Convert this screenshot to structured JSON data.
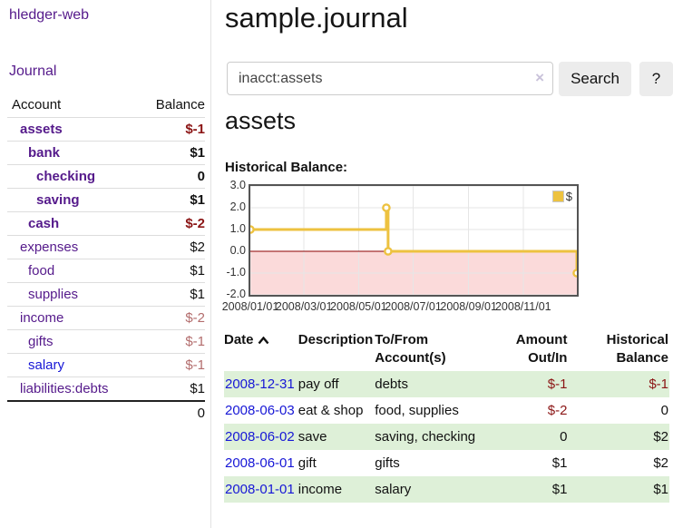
{
  "colors": {
    "purple": "#551a8b",
    "blue": "#1717d6",
    "neg_strong": "#8b1515",
    "neg_soft": "#b36d6d",
    "row_green": "#def0d8",
    "chart_yellow": "#edc240",
    "chart_pink": "#fbdada",
    "zero_red": "#8b0000",
    "grid": "#e6e6e6",
    "chart_border": "#545454",
    "divider": "#dddddd"
  },
  "sidebar": {
    "app_title": "hledger-web",
    "journal_link": "Journal",
    "accounts_table": {
      "header_account": "Account",
      "header_balance": "Balance",
      "rows": [
        {
          "name": "assets",
          "balance": "$-1",
          "level": 1,
          "bold": true,
          "balance_style": "neg-strong",
          "link_color": "purple"
        },
        {
          "name": "bank",
          "balance": "$1",
          "level": 2,
          "bold": true,
          "balance_style": "normal",
          "link_color": "purple"
        },
        {
          "name": "checking",
          "balance": "0",
          "level": 3,
          "bold": true,
          "balance_style": "normal",
          "link_color": "purple"
        },
        {
          "name": "saving",
          "balance": "$1",
          "level": 3,
          "bold": true,
          "balance_style": "normal",
          "link_color": "purple"
        },
        {
          "name": "cash",
          "balance": "$-2",
          "level": 2,
          "bold": true,
          "balance_style": "neg-strong",
          "link_color": "purple"
        },
        {
          "name": "expenses",
          "balance": "$2",
          "level": 1,
          "bold": false,
          "balance_style": "normal",
          "link_color": "purple"
        },
        {
          "name": "food",
          "balance": "$1",
          "level": 2,
          "bold": false,
          "balance_style": "normal",
          "link_color": "purple"
        },
        {
          "name": "supplies",
          "balance": "$1",
          "level": 2,
          "bold": false,
          "balance_style": "normal",
          "link_color": "purple"
        },
        {
          "name": "income",
          "balance": "$-2",
          "level": 1,
          "bold": false,
          "balance_style": "neg-soft",
          "link_color": "purple"
        },
        {
          "name": "gifts",
          "balance": "$-1",
          "level": 2,
          "bold": false,
          "balance_style": "neg-soft",
          "link_color": "purple"
        },
        {
          "name": "salary",
          "balance": "$-1",
          "level": 2,
          "bold": false,
          "balance_style": "neg-soft",
          "link_color": "blue"
        },
        {
          "name": "liabilities:debts",
          "balance": "$1",
          "level": 1,
          "bold": false,
          "balance_style": "normal",
          "link_color": "purple"
        }
      ],
      "total": "0"
    }
  },
  "header": {
    "title": "sample.journal"
  },
  "search": {
    "value": "inacct:assets",
    "clear_icon": "×",
    "search_button": "Search",
    "help_button": "?"
  },
  "account_view": {
    "heading": "assets",
    "chart_label": "Historical Balance:"
  },
  "chart_data": {
    "type": "line",
    "step": true,
    "title": "Historical Balance:",
    "legend": [
      {
        "name": "$",
        "color": "#edc240"
      }
    ],
    "legend_position": "top-right",
    "xrange": [
      "2008-01-01",
      "2008-12-31"
    ],
    "ylim": [
      -2,
      3
    ],
    "yticks": [
      3.0,
      2.0,
      1.0,
      0.0,
      -1.0,
      -2.0
    ],
    "ytick_labels": [
      "3.0",
      "2.0",
      "1.0",
      "0.0",
      "-1.0",
      "-2.0"
    ],
    "xtick_labels": [
      "2008/01/01",
      "2008/03/01",
      "2008/05/01",
      "2008/07/01",
      "2008/09/01",
      "2008/11/01"
    ],
    "series": [
      {
        "name": "$",
        "color": "#edc240",
        "points": [
          [
            "2008-01-01",
            1
          ],
          [
            "2008-06-01",
            2
          ],
          [
            "2008-06-03",
            0
          ],
          [
            "2008-12-31",
            -1
          ]
        ]
      }
    ],
    "negative_region_below": 0,
    "grid": true
  },
  "register": {
    "headers": {
      "date": "Date",
      "description": "Description",
      "accounts": "To/From Account(s)",
      "amount": "Amount Out/In",
      "balance": "Historical Balance"
    },
    "rows": [
      {
        "date": "2008-12-31",
        "description": "pay off",
        "accounts": "debts",
        "amount": "$-1",
        "balance": "$-1",
        "amount_neg": true,
        "balance_neg": true,
        "shaded": true
      },
      {
        "date": "2008-06-03",
        "description": "eat & shop",
        "accounts": "food, supplies",
        "amount": "$-2",
        "balance": "0",
        "amount_neg": true,
        "balance_neg": false,
        "shaded": false
      },
      {
        "date": "2008-06-02",
        "description": "save",
        "accounts": "saving, checking",
        "amount": "0",
        "balance": "$2",
        "amount_neg": false,
        "balance_neg": false,
        "shaded": true
      },
      {
        "date": "2008-06-01",
        "description": "gift",
        "accounts": "gifts",
        "amount": "$1",
        "balance": "$2",
        "amount_neg": false,
        "balance_neg": false,
        "shaded": false
      },
      {
        "date": "2008-01-01",
        "description": "income",
        "accounts": "salary",
        "amount": "$1",
        "balance": "$1",
        "amount_neg": false,
        "balance_neg": false,
        "shaded": true
      }
    ]
  }
}
